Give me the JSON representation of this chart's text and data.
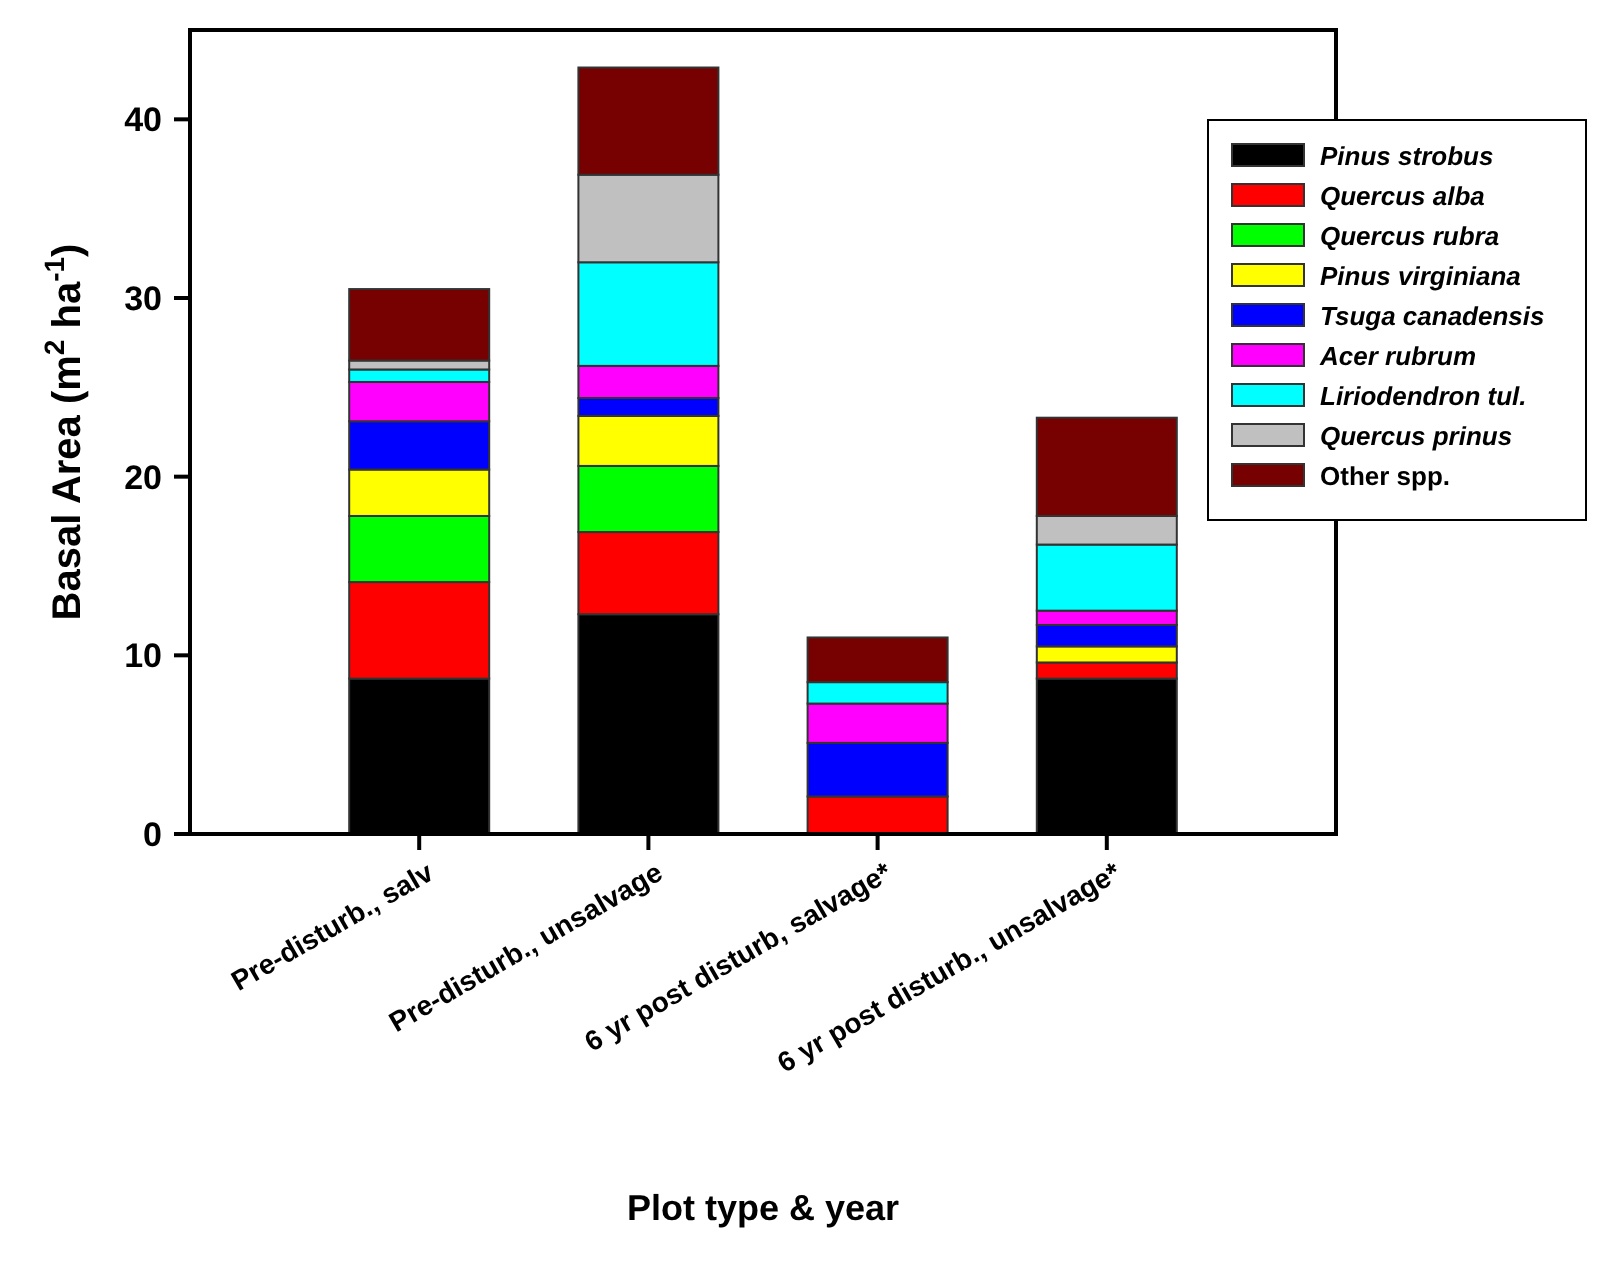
{
  "chart_data": {
    "type": "bar",
    "stacked": true,
    "xlabel": "Plot type & year",
    "ylabel": "Basal Area (m$^{2}$ ha$^{-1}$)",
    "categories": [
      "Pre-disturb., salv",
      "Pre-disturb., unsalvage",
      "6 yr post disturb, salvage*",
      "6 yr post disturb., unsalvage*"
    ],
    "ylim": [
      0,
      45
    ],
    "yticks": [
      0,
      10,
      20,
      30,
      40
    ],
    "grid": false,
    "legend": "top right",
    "series": [
      {
        "name": "Pinus strobus",
        "color": "#000000",
        "values": [
          8.7,
          12.3,
          0,
          8.7
        ]
      },
      {
        "name": "Quercus alba",
        "color": "#ff0000",
        "values": [
          5.4,
          4.6,
          2.1,
          0.9
        ]
      },
      {
        "name": "Quercus rubra",
        "color": "#00ff00",
        "values": [
          3.7,
          3.7,
          0,
          0
        ]
      },
      {
        "name": "Pinus virginiana",
        "color": "#ffff00",
        "values": [
          2.6,
          2.8,
          0,
          0.9
        ]
      },
      {
        "name": "Tsuga canadensis",
        "color": "#0000ff",
        "values": [
          2.7,
          1.0,
          3.0,
          1.2
        ]
      },
      {
        "name": "Acer rubrum",
        "color": "#ff00ff",
        "values": [
          2.2,
          1.8,
          2.2,
          0.8
        ]
      },
      {
        "name": "Liriodendron tul.",
        "color": "#00ffff",
        "values": [
          0.7,
          5.8,
          1.2,
          3.7
        ]
      },
      {
        "name": "Quercus prinus",
        "color": "#c0c0c0",
        "values": [
          0.5,
          4.9,
          0,
          1.6
        ]
      },
      {
        "name": "Other spp.",
        "color": "#770000",
        "values": [
          4.0,
          6.0,
          2.5,
          5.5
        ]
      }
    ]
  }
}
